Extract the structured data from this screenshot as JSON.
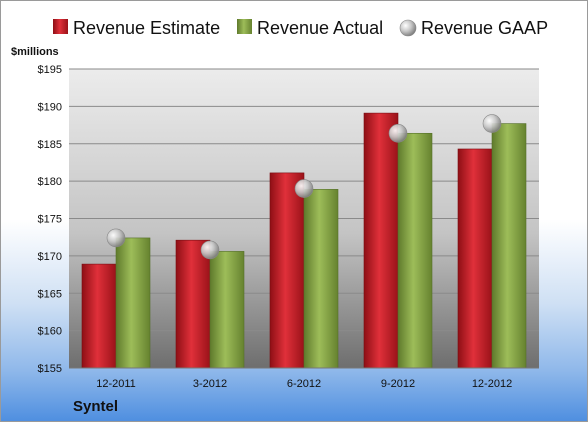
{
  "chart_data": {
    "type": "bar",
    "ylabel": "$millions",
    "categories": [
      "12-2011",
      "3-2012",
      "6-2012",
      "9-2012",
      "12-2012"
    ],
    "series": [
      {
        "name": "Revenue Estimate",
        "kind": "bar",
        "color": "#d01f2a",
        "values": [
          168.9,
          172.1,
          181.1,
          189.1,
          184.3
        ]
      },
      {
        "name": "Revenue Actual",
        "kind": "bar",
        "color": "#8bab49",
        "values": [
          172.4,
          170.6,
          178.9,
          186.4,
          187.7
        ]
      },
      {
        "name": "Revenue GAAP",
        "kind": "marker",
        "color": "#b9b9b9",
        "values": [
          172.4,
          170.8,
          179.0,
          186.4,
          187.7
        ]
      }
    ],
    "ylim": [
      155,
      195
    ],
    "yticks": [
      155,
      160,
      165,
      170,
      175,
      180,
      185,
      190,
      195
    ],
    "ytick_labels": [
      "$155",
      "$160",
      "$165",
      "$170",
      "$175",
      "$180",
      "$185",
      "$190",
      "$195"
    ],
    "grid": true,
    "legend_position": "top"
  },
  "company": "Syntel"
}
